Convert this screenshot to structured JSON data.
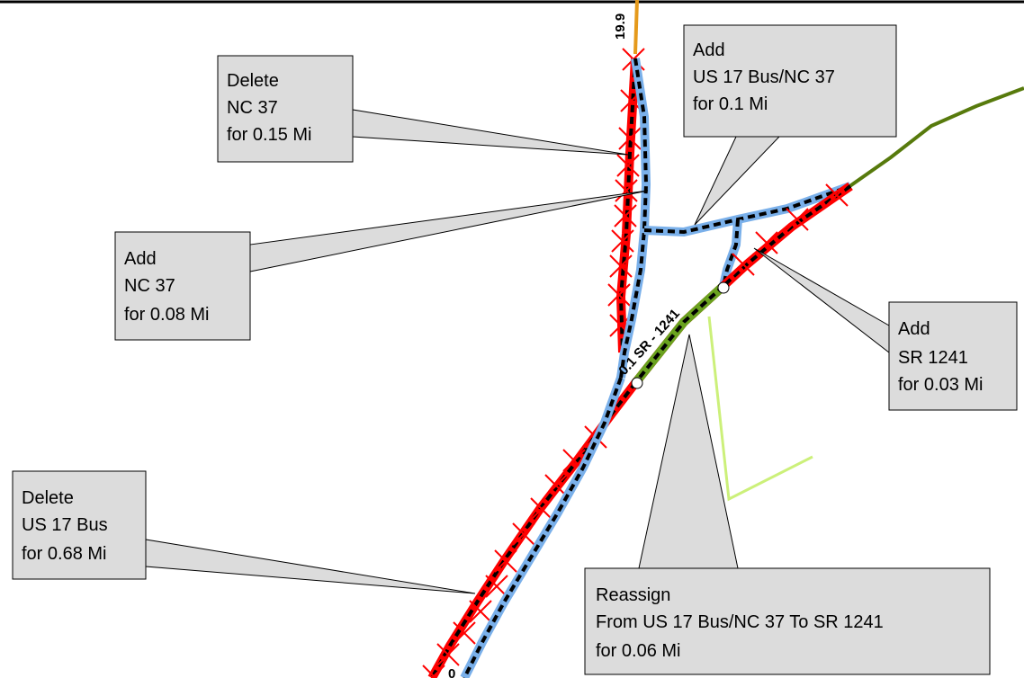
{
  "map": {
    "colors": {
      "background": "#ffffff",
      "callout_fill": "#dcdcdc",
      "delete_red": "#ff0000",
      "black_dash": "#000000",
      "blue_line": "#7ab0ea",
      "orange_road": "#e59a1c",
      "dark_green_road": "#577a0c",
      "light_green_road": "#ccf07a",
      "green_segment": "#6aa21f"
    },
    "road_labels": {
      "top_mile": "19.9",
      "segment": "0.1 SR - 1241",
      "bottom": "0"
    },
    "callouts": {
      "delete_nc37": {
        "lines": [
          "Delete",
          "NC 37",
          "for 0.15 Mi"
        ]
      },
      "add_us17bus_nc37": {
        "lines": [
          "Add",
          "US 17 Bus/NC 37",
          "for 0.1 Mi"
        ]
      },
      "add_nc37": {
        "lines": [
          "Add",
          "NC 37",
          "for 0.08 Mi"
        ]
      },
      "add_sr1241": {
        "lines": [
          "Add",
          "SR 1241",
          "for 0.03 Mi"
        ]
      },
      "delete_us17bus": {
        "lines": [
          "Delete",
          "US 17 Bus",
          "for 0.68 Mi"
        ]
      },
      "reassign": {
        "lines": [
          "Reassign",
          "From US 17 Bus/NC 37 To SR 1241",
          "for 0.06 Mi"
        ]
      }
    }
  }
}
